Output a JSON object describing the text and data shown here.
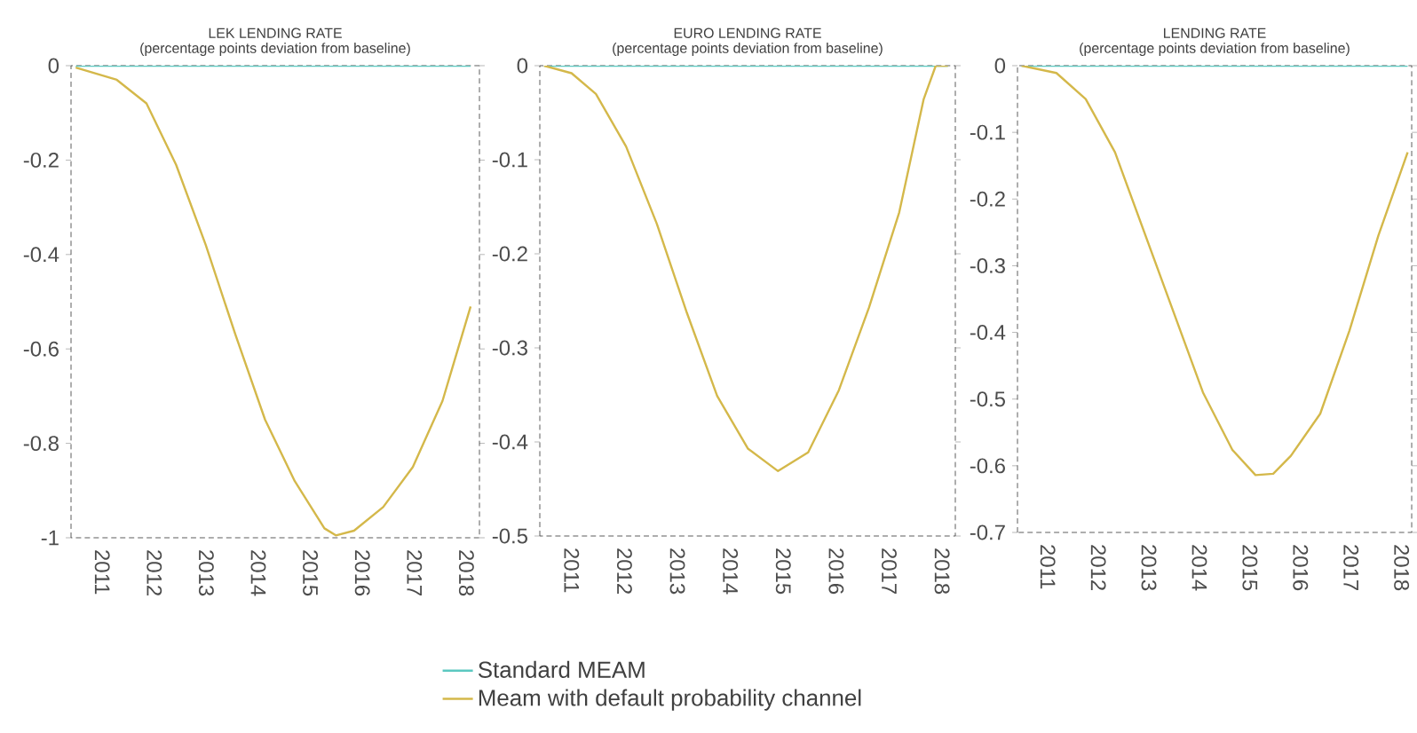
{
  "chart_data": [
    {
      "type": "line",
      "title": "LEK LENDING RATE",
      "subtitle": "(percentage points deviation from baseline)",
      "xlim": [
        2010.4,
        2018.25
      ],
      "xticks": [
        2011,
        2012,
        2013,
        2014,
        2015,
        2016,
        2017,
        2018
      ],
      "ylim": [
        -1,
        0
      ],
      "yticks": [
        -1,
        -0.8,
        -0.6,
        -0.4,
        -0.2,
        0
      ],
      "grid": false,
      "legend": false,
      "line_style": "solid",
      "marker": "none",
      "series": [
        {
          "color": "#5bc8c0",
          "x": [
            2010.49,
            2011.28,
            2011.85,
            2012.42,
            2012.99,
            2013.56,
            2014.13,
            2014.7,
            2015.27,
            2015.49,
            2015.84,
            2016.4,
            2016.97,
            2017.54,
            2018.08
          ],
          "values": [
            0,
            0,
            0,
            0,
            0,
            0,
            0,
            0,
            0,
            0,
            0,
            0,
            0,
            0,
            0
          ]
        },
        {
          "color": "#d4b84a",
          "x": [
            2010.49,
            2011.28,
            2011.85,
            2012.42,
            2012.99,
            2013.56,
            2014.13,
            2014.7,
            2015.27,
            2015.49,
            2015.84,
            2016.4,
            2016.97,
            2017.54,
            2018.08
          ],
          "values": [
            -0.004,
            -0.03,
            -0.08,
            -0.21,
            -0.38,
            -0.57,
            -0.75,
            -0.88,
            -0.98,
            -0.995,
            -0.985,
            -0.935,
            -0.85,
            -0.71,
            -0.51
          ]
        }
      ]
    },
    {
      "type": "line",
      "title": "EURO LENDING RATE",
      "subtitle": "(percentage points deviation from baseline)",
      "xlim": [
        2010.4,
        2018.25
      ],
      "xticks": [
        2011,
        2012,
        2013,
        2014,
        2015,
        2016,
        2017,
        2018
      ],
      "ylim": [
        -0.5,
        0
      ],
      "yticks": [
        -0.5,
        -0.4,
        -0.3,
        -0.2,
        -0.1,
        0
      ],
      "grid": false,
      "legend": "bottom",
      "line_style": "solid",
      "marker": "none",
      "series": [
        {
          "name": "Standard MEAM",
          "color": "#5bc8c0",
          "x": [
            2010.48,
            2011.0,
            2011.46,
            2012.03,
            2012.61,
            2013.18,
            2013.75,
            2014.33,
            2014.9,
            2015.47,
            2016.05,
            2016.62,
            2017.19,
            2017.65,
            2017.88,
            2018.11
          ],
          "values": [
            0,
            0,
            0,
            0,
            0,
            0,
            0,
            0,
            0,
            0,
            0,
            0,
            0,
            0,
            0,
            0
          ]
        },
        {
          "name": "Meam with default probability channel",
          "color": "#d4b84a",
          "x": [
            2010.48,
            2011.0,
            2011.46,
            2012.03,
            2012.61,
            2013.18,
            2013.75,
            2014.33,
            2014.9,
            2015.47,
            2016.05,
            2016.62,
            2017.19,
            2017.65,
            2017.88,
            2018.11
          ],
          "values": [
            0,
            -0.008,
            -0.03,
            -0.086,
            -0.168,
            -0.263,
            -0.351,
            -0.407,
            -0.431,
            -0.411,
            -0.345,
            -0.257,
            -0.156,
            -0.036,
            0,
            0
          ]
        }
      ]
    },
    {
      "type": "line",
      "title": "LENDING RATE",
      "subtitle": "(percentage points deviation from baseline)",
      "xlim": [
        2010.4,
        2018.2
      ],
      "xticks": [
        2011,
        2012,
        2013,
        2014,
        2015,
        2016,
        2017,
        2018
      ],
      "ylim": [
        -0.7,
        0
      ],
      "yticks": [
        -0.7,
        -0.6,
        -0.5,
        -0.4,
        -0.3,
        -0.2,
        -0.1,
        0
      ],
      "grid": false,
      "legend": false,
      "line_style": "solid",
      "marker": "none",
      "series": [
        {
          "color": "#5bc8c0",
          "x": [
            2010.48,
            2011.17,
            2011.75,
            2012.33,
            2012.91,
            2013.49,
            2014.07,
            2014.65,
            2015.11,
            2015.46,
            2015.81,
            2016.39,
            2016.97,
            2017.54,
            2018.12
          ],
          "values": [
            0,
            0,
            0,
            0,
            0,
            0,
            0,
            0,
            0,
            0,
            0,
            0,
            0,
            0,
            0
          ]
        },
        {
          "color": "#d4b84a",
          "x": [
            2010.48,
            2011.17,
            2011.75,
            2012.33,
            2012.91,
            2013.49,
            2014.07,
            2014.65,
            2015.11,
            2015.46,
            2015.81,
            2016.39,
            2016.97,
            2017.54,
            2018.12
          ],
          "values": [
            0,
            -0.011,
            -0.05,
            -0.13,
            -0.25,
            -0.37,
            -0.49,
            -0.576,
            -0.614,
            -0.612,
            -0.585,
            -0.522,
            -0.397,
            -0.255,
            -0.13
          ]
        }
      ]
    }
  ]
}
